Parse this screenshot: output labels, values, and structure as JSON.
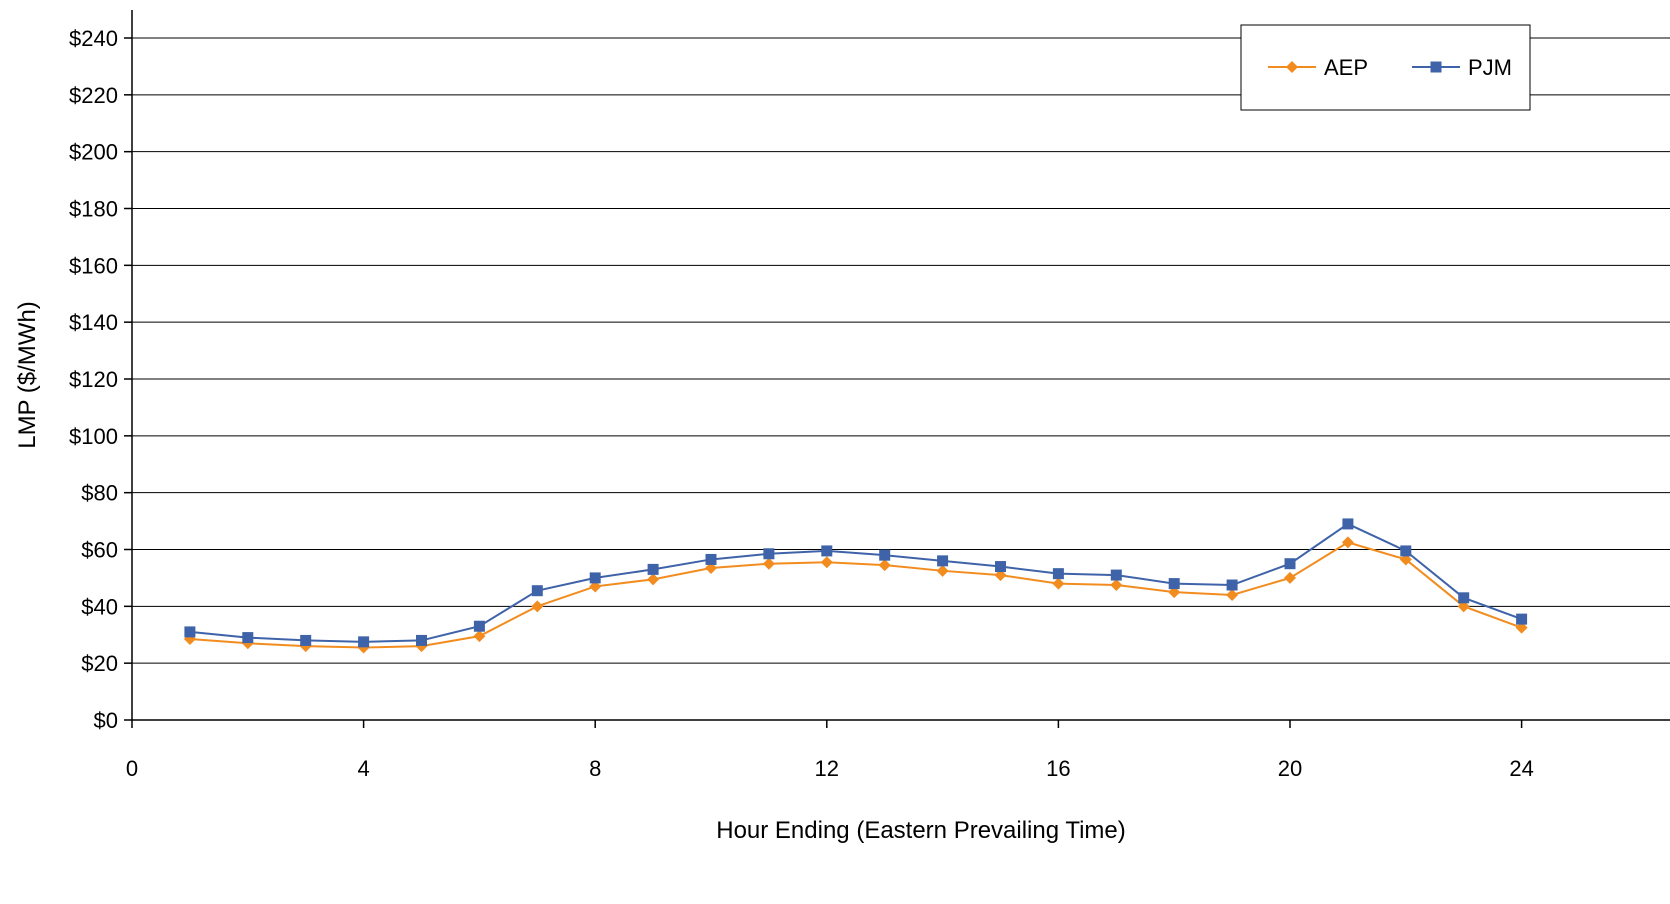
{
  "chart_data": {
    "type": "line",
    "title": "",
    "xlabel": "Hour Ending (Eastern Prevailing Time)",
    "ylabel": "LMP ($/MWh)",
    "xlim": [
      0,
      25
    ],
    "ylim": [
      0,
      240
    ],
    "xticks": [
      0,
      4,
      8,
      12,
      16,
      20,
      24
    ],
    "yticks": [
      0,
      20,
      40,
      60,
      80,
      100,
      120,
      140,
      160,
      180,
      200,
      220,
      240
    ],
    "ytick_labels": [
      "$0",
      "$20",
      "$40",
      "$60",
      "$80",
      "$100",
      "$120",
      "$140",
      "$160",
      "$180",
      "$200",
      "$220",
      "$240"
    ],
    "grid": "horizontal",
    "legend": "top-right",
    "x": [
      1,
      2,
      3,
      4,
      5,
      6,
      7,
      8,
      9,
      10,
      11,
      12,
      13,
      14,
      15,
      16,
      17,
      18,
      19,
      20,
      21,
      22,
      23,
      24
    ],
    "series": [
      {
        "name": "AEP",
        "color": "#F28C1F",
        "marker": "diamond",
        "values": [
          28.5,
          27,
          26,
          25.5,
          26,
          29.5,
          40,
          47,
          49.5,
          53.5,
          55,
          55.5,
          54.5,
          52.5,
          51,
          48,
          47.5,
          45,
          44,
          50,
          62.5,
          56.5,
          40,
          32.5
        ]
      },
      {
        "name": "PJM",
        "color": "#3F63A8",
        "marker": "square",
        "values": [
          31,
          29,
          28,
          27.5,
          28,
          33,
          45.5,
          50,
          53,
          56.5,
          58.5,
          59.5,
          58,
          56,
          54,
          51.5,
          51,
          48,
          47.5,
          55,
          69,
          59.5,
          43,
          35.5
        ]
      }
    ]
  }
}
